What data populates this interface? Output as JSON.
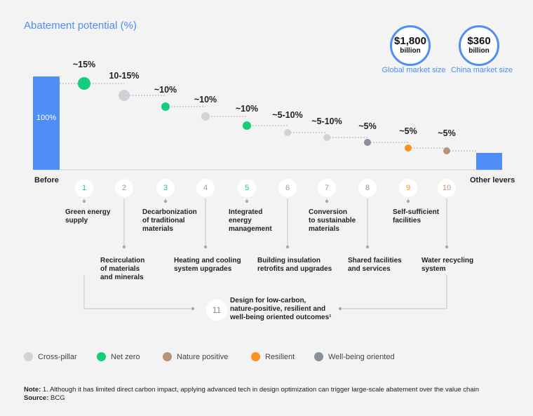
{
  "chart_data": {
    "type": "waterfall",
    "title": "Abatement potential (%)",
    "market": [
      {
        "value": "$1,800",
        "unit": "billion",
        "label": "Global market size"
      },
      {
        "value": "$360",
        "unit": "billion",
        "label": "China market size"
      }
    ],
    "before": {
      "label": "Before",
      "value": "100%"
    },
    "after": {
      "label": "Other levers"
    },
    "colors": {
      "Cross-pillar": "#cfd3d7",
      "Net zero": "#14cc7a",
      "Nature positive": "#b89378",
      "Resilient": "#f7921e",
      "Well-being oriented": "#8a8f99",
      "bar": "#4f8ef7"
    },
    "levers": [
      {
        "num": "1",
        "pct": "~15%",
        "category": "Net zero",
        "label": [
          "Green energy",
          "supply"
        ]
      },
      {
        "num": "2",
        "pct": "10-15%",
        "category": "Cross-pillar",
        "label": [
          "Recirculation",
          "of materials",
          "and minerals"
        ]
      },
      {
        "num": "3",
        "pct": "~10%",
        "category": "Net zero",
        "label": [
          "Decarbonization",
          "of traditional",
          "materials"
        ]
      },
      {
        "num": "4",
        "pct": "~10%",
        "category": "Cross-pillar",
        "label": [
          "Heating and cooling",
          "system upgrades"
        ]
      },
      {
        "num": "5",
        "pct": "~10%",
        "category": "Net zero",
        "label": [
          "Integrated",
          "energy",
          "management"
        ]
      },
      {
        "num": "6",
        "pct": "~5-10%",
        "category": "Cross-pillar",
        "label": [
          "Building insulation",
          "retrofits and upgrades"
        ]
      },
      {
        "num": "7",
        "pct": "~5-10%",
        "category": "Cross-pillar",
        "label": [
          "Conversion",
          "to sustainable",
          "materials"
        ]
      },
      {
        "num": "8",
        "pct": "~5%",
        "category": "Well-being oriented",
        "label": [
          "Shared facilities",
          "and services"
        ]
      },
      {
        "num": "9",
        "pct": "~5%",
        "category": "Resilient",
        "label": [
          "Self-sufficient",
          "facilities"
        ]
      },
      {
        "num": "10",
        "pct": "~5%",
        "category": "Nature positive",
        "label": [
          "Water recycling",
          "system"
        ]
      }
    ],
    "design_lever": {
      "num": "11",
      "label": [
        "Design for low-carbon,",
        "nature-positive, resilient and",
        "well-being oriented outcomes¹"
      ]
    },
    "legend": [
      "Cross-pillar",
      "Net zero",
      "Nature positive",
      "Resilient",
      "Well-being oriented"
    ]
  },
  "note": {
    "label": "Note:",
    "text": " 1. Although it has limited direct carbon impact, applying advanced tech in design optimization can trigger large-scale abatement over the value chain"
  },
  "source": {
    "label": "Source:",
    "text": " BCG"
  }
}
